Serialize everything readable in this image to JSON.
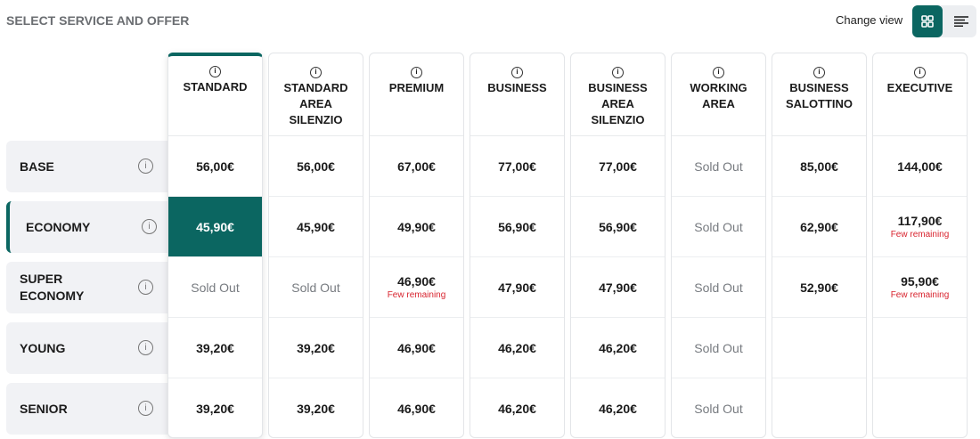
{
  "title": "SELECT SERVICE AND OFFER",
  "change_view": "Change view",
  "colors": {
    "accent": "#0b6661",
    "few": "#d8242f"
  },
  "columns": [
    "STANDARD",
    "STANDARD AREA SILENZIO",
    "PREMIUM",
    "BUSINESS",
    "BUSINESS AREA SILENZIO",
    "WORKING AREA",
    "BUSINESS SALOTTINO",
    "EXECUTIVE"
  ],
  "rows": [
    {
      "label": "BASE",
      "cells": [
        {
          "p": "56,00€"
        },
        {
          "p": "56,00€"
        },
        {
          "p": "67,00€"
        },
        {
          "p": "77,00€"
        },
        {
          "p": "77,00€"
        },
        {
          "p": "Sold Out",
          "so": true
        },
        {
          "p": "85,00€"
        },
        {
          "p": "144,00€"
        }
      ]
    },
    {
      "label": "ECONOMY",
      "selected": true,
      "cells": [
        {
          "p": "45,90€",
          "hl": true
        },
        {
          "p": "45,90€"
        },
        {
          "p": "49,90€"
        },
        {
          "p": "56,90€"
        },
        {
          "p": "56,90€"
        },
        {
          "p": "Sold Out",
          "so": true
        },
        {
          "p": "62,90€"
        },
        {
          "p": "117,90€",
          "few": "Few remaining"
        }
      ]
    },
    {
      "label": "SUPER ECONOMY",
      "cells": [
        {
          "p": "Sold Out",
          "so": true
        },
        {
          "p": "Sold Out",
          "so": true
        },
        {
          "p": "46,90€",
          "few": "Few remaining"
        },
        {
          "p": "47,90€"
        },
        {
          "p": "47,90€"
        },
        {
          "p": "Sold Out",
          "so": true
        },
        {
          "p": "52,90€"
        },
        {
          "p": "95,90€",
          "few": "Few remaining"
        }
      ]
    },
    {
      "label": "YOUNG",
      "cells": [
        {
          "p": "39,20€"
        },
        {
          "p": "39,20€"
        },
        {
          "p": "46,90€"
        },
        {
          "p": "46,20€"
        },
        {
          "p": "46,20€"
        },
        {
          "p": "Sold Out",
          "so": true
        },
        {
          "p": ""
        },
        {
          "p": ""
        }
      ]
    },
    {
      "label": "SENIOR",
      "cells": [
        {
          "p": "39,20€"
        },
        {
          "p": "39,20€"
        },
        {
          "p": "46,90€"
        },
        {
          "p": "46,20€"
        },
        {
          "p": "46,20€"
        },
        {
          "p": "Sold Out",
          "so": true
        },
        {
          "p": ""
        },
        {
          "p": ""
        }
      ]
    }
  ]
}
